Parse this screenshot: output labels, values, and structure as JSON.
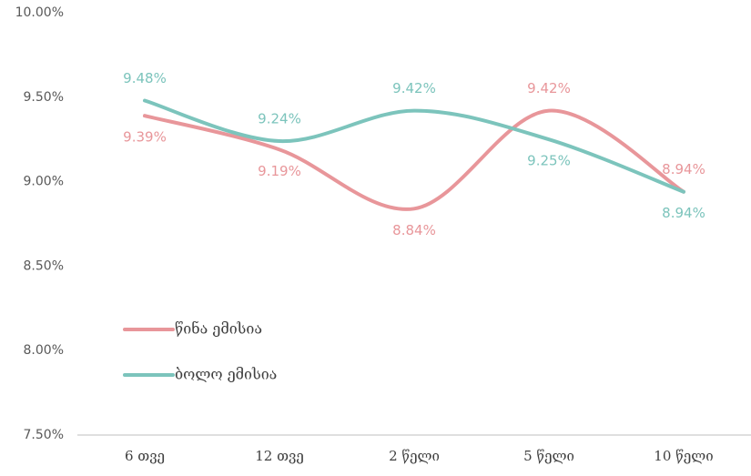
{
  "chart_data": {
    "type": "line",
    "categories": [
      "6 თვე",
      "12 თვე",
      "2 წელი",
      "5 წელი",
      "10 წელი"
    ],
    "series": [
      {
        "name": "წინა ემისია",
        "color": "#e8969a",
        "values": [
          9.39,
          9.19,
          8.84,
          9.42,
          8.94
        ],
        "value_labels": [
          "9.39%",
          "9.19%",
          "8.84%",
          "9.42%",
          "8.94%"
        ]
      },
      {
        "name": "ბოლო ემისია",
        "color": "#7cc4bc",
        "values": [
          9.48,
          9.24,
          9.42,
          9.25,
          8.94
        ],
        "value_labels": [
          "9.48%",
          "9.24%",
          "9.42%",
          "9.25%",
          "8.94%"
        ]
      }
    ],
    "ylim": [
      7.5,
      10
    ],
    "yticks": [
      {
        "value": 7.5,
        "label": "7.50%"
      },
      {
        "value": 8,
        "label": "8.00%"
      },
      {
        "value": 8.5,
        "label": "8.50%"
      },
      {
        "value": 9,
        "label": "9.00%"
      },
      {
        "value": 9.5,
        "label": "9.50%"
      },
      {
        "value": 10,
        "label": "10.00%"
      }
    ],
    "grid": false,
    "legend": "lower left"
  }
}
